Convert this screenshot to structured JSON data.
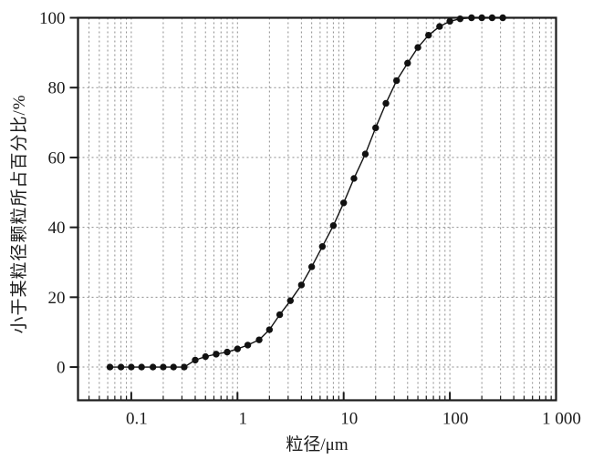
{
  "figure": {
    "background": "#ffffff",
    "frame_color": "#1a1a1a",
    "grid_color": "#8c8c8c",
    "series_color": "#111111"
  },
  "chart_data": {
    "type": "line",
    "title": "",
    "xlabel": "粒径/μm",
    "ylabel": "小于某粒径颗粒所占百分比/%",
    "x_scale": "log",
    "x_range": [
      0.0315,
      1000
    ],
    "y_range": [
      -9.5,
      100
    ],
    "grid": "dashed",
    "legend": "none",
    "x_ticks": [
      {
        "v": 0.1,
        "label": "0.1"
      },
      {
        "v": 1,
        "label": "1"
      },
      {
        "v": 10,
        "label": "10"
      },
      {
        "v": 100,
        "label": "100"
      },
      {
        "v": 1000,
        "label": "1 000"
      }
    ],
    "y_ticks": [
      0,
      20,
      40,
      60,
      80,
      100
    ],
    "series": [
      {
        "name": "cumulative-undersize-percentage",
        "marker": "filled-circle",
        "x": [
          0.063,
          0.08,
          0.1,
          0.125,
          0.16,
          0.2,
          0.25,
          0.315,
          0.4,
          0.5,
          0.63,
          0.8,
          1,
          1.25,
          1.6,
          2,
          2.5,
          3.15,
          4,
          5,
          6.3,
          8,
          10,
          12.5,
          16,
          20,
          25,
          31.5,
          40,
          50,
          63,
          80,
          100,
          125,
          160,
          200,
          250,
          315
        ],
        "y": [
          0,
          0,
          0,
          0,
          0,
          0,
          0,
          0,
          2,
          3,
          3.7,
          4.3,
          5.2,
          6.3,
          7.8,
          10.7,
          15,
          19,
          23.5,
          28.7,
          34.5,
          40.5,
          47,
          54,
          61,
          68.5,
          75.5,
          82,
          87,
          91.5,
          95,
          97.5,
          99,
          99.7,
          100,
          100,
          100,
          100
        ]
      }
    ]
  }
}
